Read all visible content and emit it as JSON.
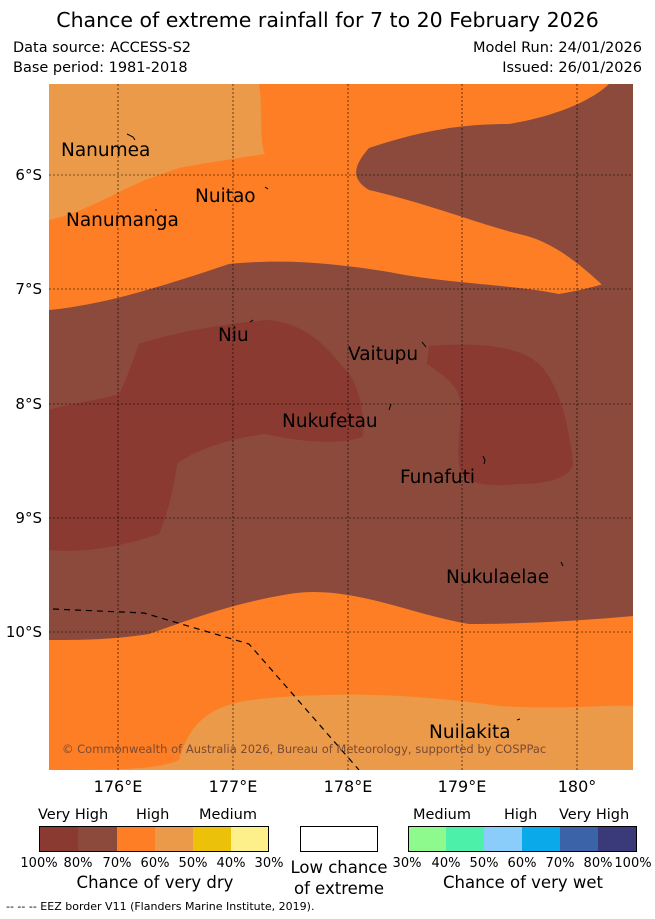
{
  "header": {
    "title": "Chance of extreme rainfall for 7 to 20 February 2026",
    "data_source": "Data source: ACCESS-S2",
    "base_period": "Base period: 1981-2018",
    "model_run": "Model Run: 24/01/2026",
    "issued": "Issued: 26/01/2026"
  },
  "map": {
    "lat_labels": [
      "6°S",
      "7°S",
      "8°S",
      "9°S",
      "10°S"
    ],
    "lon_labels": [
      "176°E",
      "177°E",
      "178°E",
      "179°E",
      "180°"
    ],
    "places": [
      "Nanumea",
      "Nuitao",
      "Nanumanga",
      "Niu",
      "Vaitupu",
      "Nukufetau",
      "Funafuti",
      "Nukulaelae",
      "Nuilakita"
    ],
    "copyright": "© Commonwealth of Australia 2026, Bureau of Meteorology, supported by COSPPac",
    "colors": {
      "very_high_dry": "#8a3a30",
      "very_high_dry_light": "#8b4a3c",
      "high_dry": "#fd7e24",
      "medium_high_dry": "#eb9a4a"
    }
  },
  "legend": {
    "dry": {
      "labels": [
        "Very High",
        "High",
        "Medium"
      ],
      "percents": [
        "100%",
        "80%",
        "70%",
        "60%",
        "50%",
        "40%",
        "30%"
      ],
      "colors": [
        "#8a3a30",
        "#8b4a3c",
        "#fd7e24",
        "#eb9a4a",
        "#ebc10a",
        "#fdf08a"
      ],
      "caption": "Chance of very dry"
    },
    "low": {
      "caption_line1": "Low chance",
      "caption_line2": "of extreme"
    },
    "wet": {
      "labels": [
        "Medium",
        "High",
        "Very High"
      ],
      "percents": [
        "30%",
        "40%",
        "50%",
        "60%",
        "70%",
        "80%",
        "100%"
      ],
      "colors": [
        "#8efa8e",
        "#4cf0a8",
        "#8acdfa",
        "#0aaaea",
        "#3a63a8",
        "#3a3a7a"
      ],
      "caption": "Chance of very wet"
    },
    "eez_note": "-- -- -- EEZ border V11 (Flanders Marine Institute, 2019)."
  }
}
